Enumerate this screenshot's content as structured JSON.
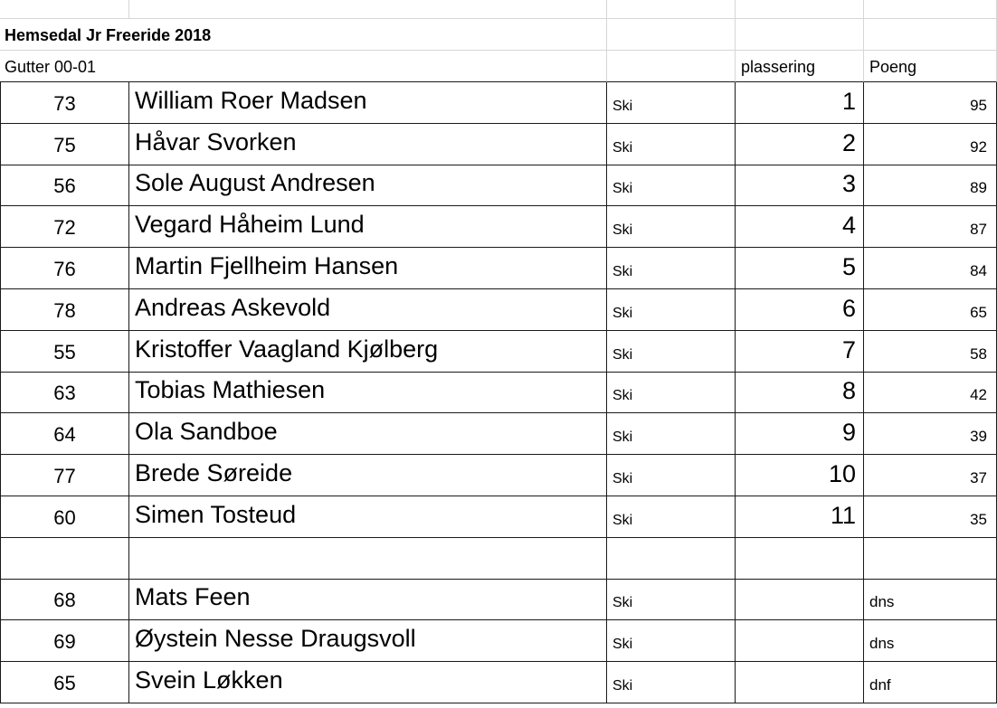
{
  "sheet": {
    "title": "Hemsedal Jr Freeride 2018",
    "group": "Gutter 00-01",
    "headers": {
      "place": "plassering",
      "points": "Poeng"
    },
    "results": [
      {
        "bib": 73,
        "name": "William Roer Madsen",
        "discipline": "Ski",
        "place": 1,
        "points": 95
      },
      {
        "bib": 75,
        "name": "Håvar Svorken",
        "discipline": "Ski",
        "place": 2,
        "points": 92
      },
      {
        "bib": 56,
        "name": "Sole August Andresen",
        "discipline": "Ski",
        "place": 3,
        "points": 89
      },
      {
        "bib": 72,
        "name": "Vegard Håheim Lund",
        "discipline": "Ski",
        "place": 4,
        "points": 87
      },
      {
        "bib": 76,
        "name": "Martin Fjellheim Hansen",
        "discipline": "Ski",
        "place": 5,
        "points": 84
      },
      {
        "bib": 78,
        "name": "Andreas Askevold",
        "discipline": "Ski",
        "place": 6,
        "points": 65
      },
      {
        "bib": 55,
        "name": "Kristoffer Vaagland Kjølberg",
        "discipline": "Ski",
        "place": 7,
        "points": 58
      },
      {
        "bib": 63,
        "name": "Tobias Mathiesen",
        "discipline": "Ski",
        "place": 8,
        "points": 42
      },
      {
        "bib": 64,
        "name": "Ola Sandboe",
        "discipline": "Ski",
        "place": 9,
        "points": 39
      },
      {
        "bib": 77,
        "name": "Brede Søreide",
        "discipline": "Ski",
        "place": 10,
        "points": 37
      },
      {
        "bib": 60,
        "name": "Simen Tosteud",
        "discipline": "Ski",
        "place": 11,
        "points": 35
      }
    ],
    "others": [
      {
        "bib": 68,
        "name": "Mats Feen",
        "discipline": "Ski",
        "status": "dns"
      },
      {
        "bib": 69,
        "name": "Øystein Nesse Draugsvoll",
        "discipline": "Ski",
        "status": "dns"
      },
      {
        "bib": 65,
        "name": "Svein Løkken",
        "discipline": "Ski",
        "status": "dnf"
      }
    ]
  }
}
